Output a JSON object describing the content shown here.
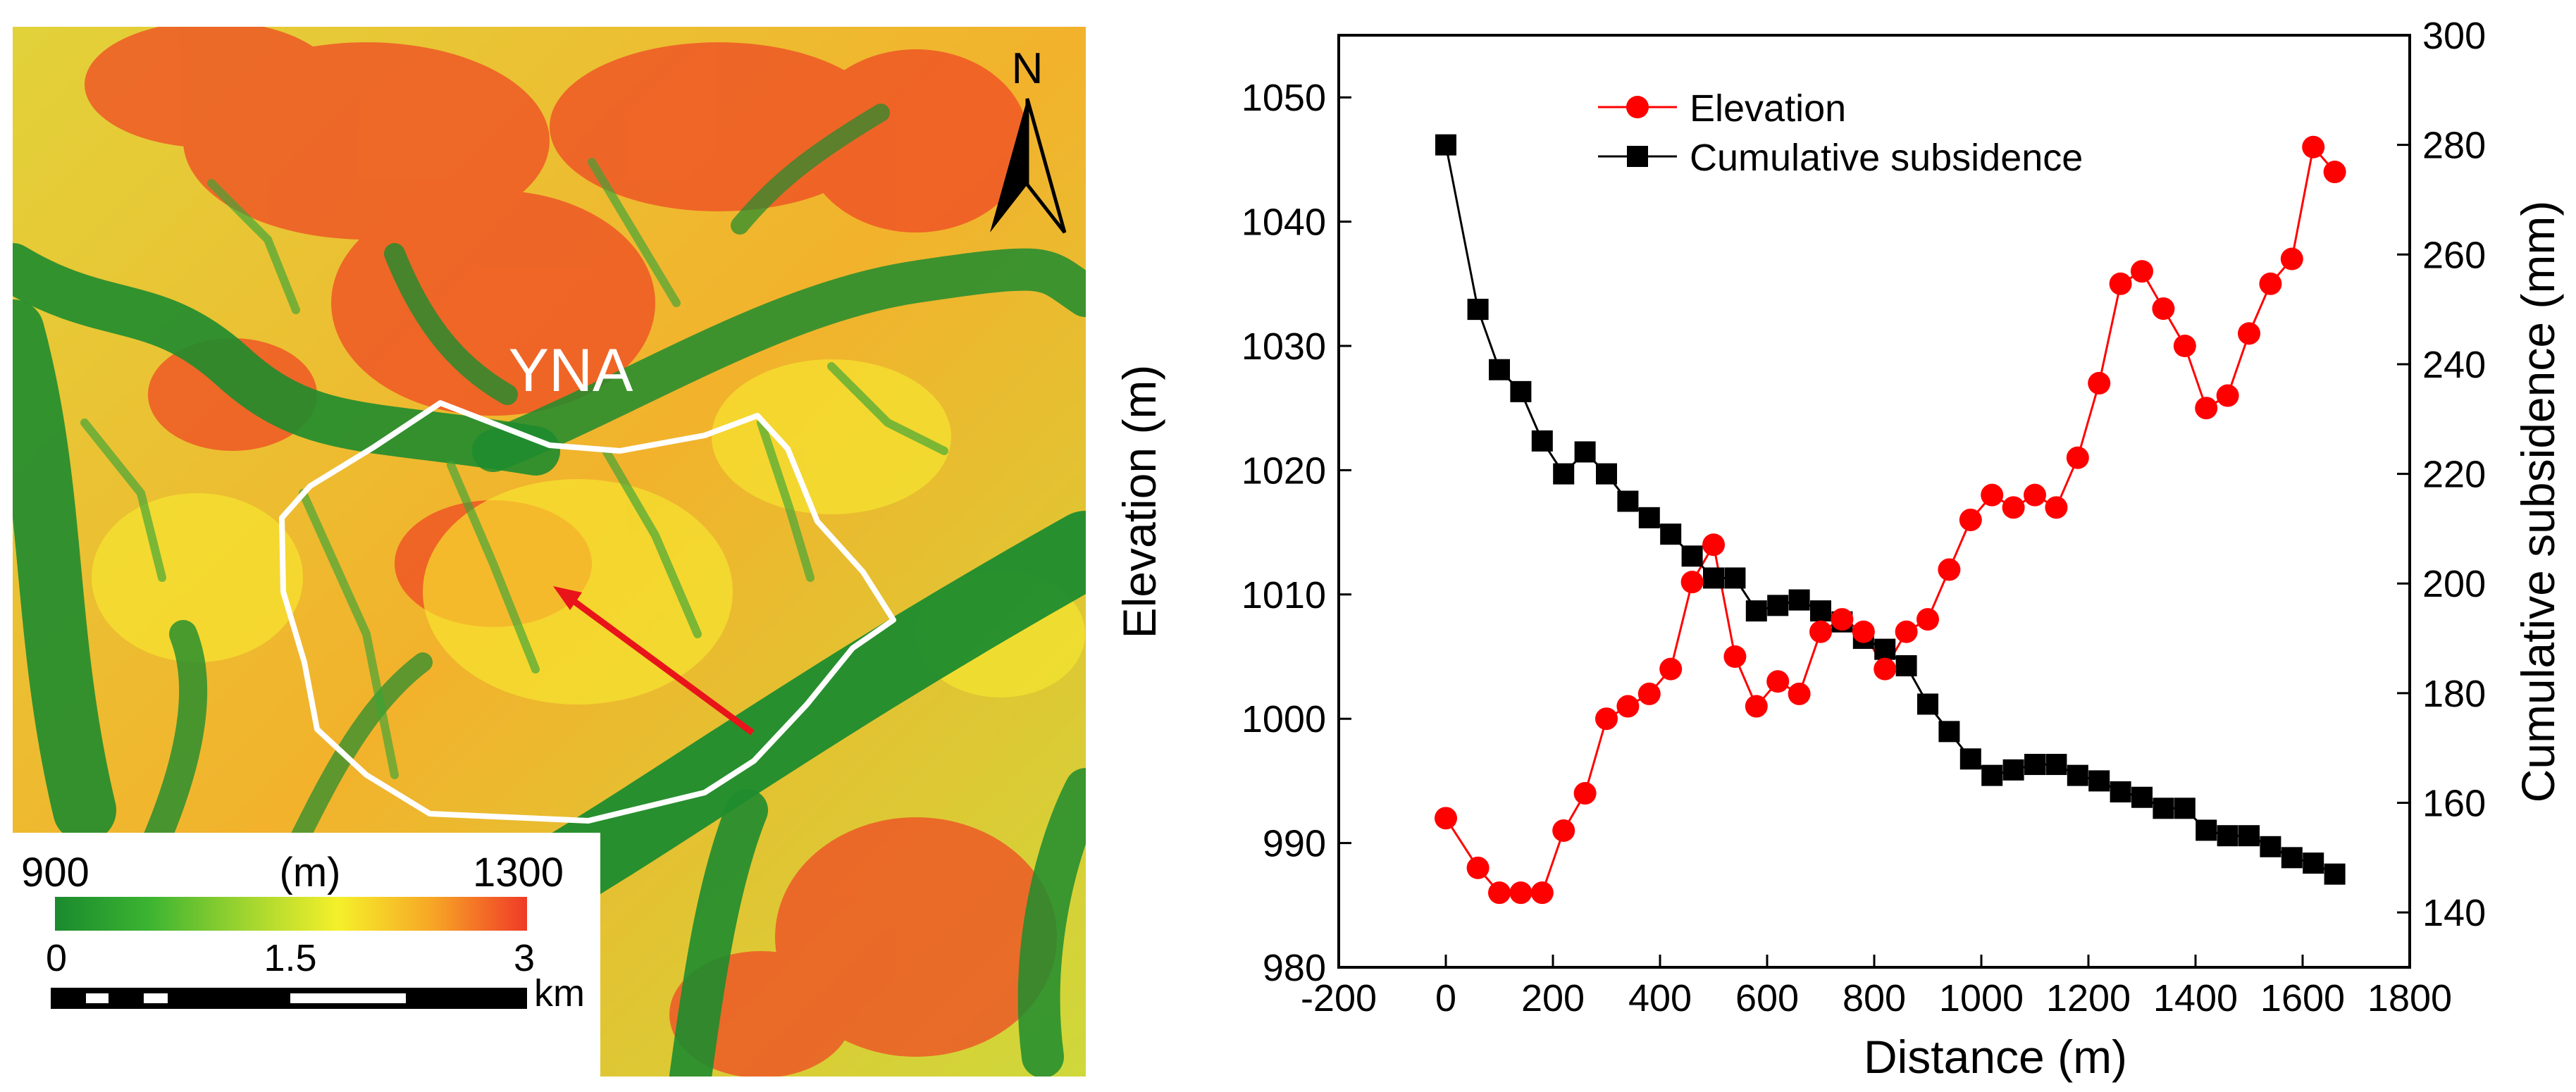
{
  "map": {
    "label": "YNA",
    "north_label": "N",
    "legend": {
      "min_label": "900",
      "unit_label": "(m)",
      "max_label": "1300",
      "colors": [
        "#1a8a2e",
        "#3cb431",
        "#9ed430",
        "#f5f02a",
        "#f7a626",
        "#f03a27"
      ]
    },
    "scale_bar": {
      "tick_labels": [
        "0",
        "1.5",
        "3"
      ],
      "unit": "km"
    },
    "arrow_color": "#e8141a",
    "boundary_color": "#ffffff"
  },
  "chart_data": {
    "type": "line",
    "xlabel": "Distance (m)",
    "ylabel": "Elevation (m)",
    "y2label": "Cumulative subsidence (mm)",
    "xlim": [
      -200,
      1800
    ],
    "ylim": [
      980,
      1055
    ],
    "y2lim": [
      130,
      300
    ],
    "xticks": [
      -200,
      0,
      200,
      400,
      600,
      800,
      1000,
      1200,
      1400,
      1600,
      1800
    ],
    "yticks": [
      980,
      990,
      1000,
      1010,
      1020,
      1030,
      1040,
      1050
    ],
    "y2ticks": [
      140,
      160,
      180,
      200,
      220,
      240,
      260,
      280,
      300
    ],
    "legend_position": "top-center",
    "series": [
      {
        "name": "Elevation",
        "axis": "left",
        "color": "#ff0000",
        "marker": "circle",
        "x": [
          0,
          60,
          100,
          140,
          180,
          220,
          260,
          300,
          340,
          380,
          420,
          460,
          500,
          540,
          580,
          620,
          660,
          700,
          740,
          780,
          820,
          860,
          900,
          940,
          980,
          1020,
          1060,
          1100,
          1140,
          1180,
          1220,
          1260,
          1300,
          1340,
          1380,
          1420,
          1460,
          1500,
          1540,
          1580,
          1620,
          1660
        ],
        "values": [
          992,
          988,
          986,
          986,
          986,
          991,
          994,
          1000,
          1001,
          1002,
          1004,
          1011,
          1014,
          1005,
          1001,
          1003,
          1002,
          1007,
          1008,
          1007,
          1004,
          1007,
          1008,
          1012,
          1016,
          1018,
          1017,
          1018,
          1017,
          1021,
          1027,
          1035,
          1036,
          1033,
          1030,
          1025,
          1026,
          1031,
          1035,
          1037,
          1046,
          1044
        ]
      },
      {
        "name": "Cumulative subsidence",
        "axis": "right",
        "color": "#000000",
        "marker": "square",
        "x": [
          0,
          60,
          100,
          140,
          180,
          220,
          260,
          300,
          340,
          380,
          420,
          460,
          500,
          540,
          580,
          620,
          660,
          700,
          740,
          780,
          820,
          860,
          900,
          940,
          980,
          1020,
          1060,
          1100,
          1140,
          1180,
          1220,
          1260,
          1300,
          1340,
          1380,
          1420,
          1460,
          1500,
          1540,
          1580,
          1620,
          1660
        ],
        "values": [
          280,
          250,
          239,
          235,
          226,
          220,
          224,
          220,
          215,
          212,
          209,
          205,
          201,
          201,
          195,
          196,
          197,
          195,
          193,
          190,
          188,
          185,
          178,
          173,
          168,
          165,
          166,
          167,
          167,
          165,
          164,
          162,
          161,
          159,
          159,
          155,
          154,
          154,
          152,
          150,
          149,
          147
        ]
      }
    ]
  }
}
